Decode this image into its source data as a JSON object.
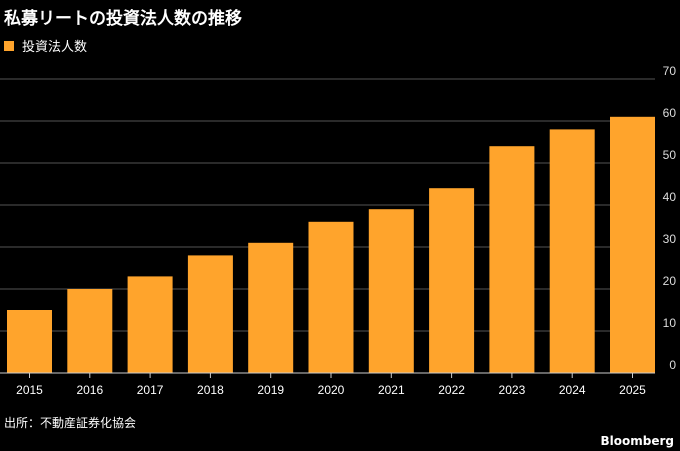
{
  "title": "私募リートの投資法人数の推移",
  "source": "出所：不動産証券化協会",
  "brand": "Bloomberg",
  "chart_data": {
    "type": "bar",
    "title": "私募リートの投資法人数の推移",
    "categories": [
      "2015",
      "2016",
      "2017",
      "2018",
      "2019",
      "2020",
      "2021",
      "2022",
      "2023",
      "2024",
      "2025"
    ],
    "series": [
      {
        "name": "投資法人数",
        "values": [
          15,
          20,
          23,
          28,
          31,
          36,
          39,
          44,
          54,
          58,
          61
        ],
        "color": "#ffa42c"
      }
    ],
    "ylim": [
      0,
      70
    ],
    "yticks": [
      0,
      10,
      20,
      30,
      40,
      50,
      60,
      70
    ],
    "grid": true,
    "legend": "top-left",
    "y_axis_side": "right"
  }
}
